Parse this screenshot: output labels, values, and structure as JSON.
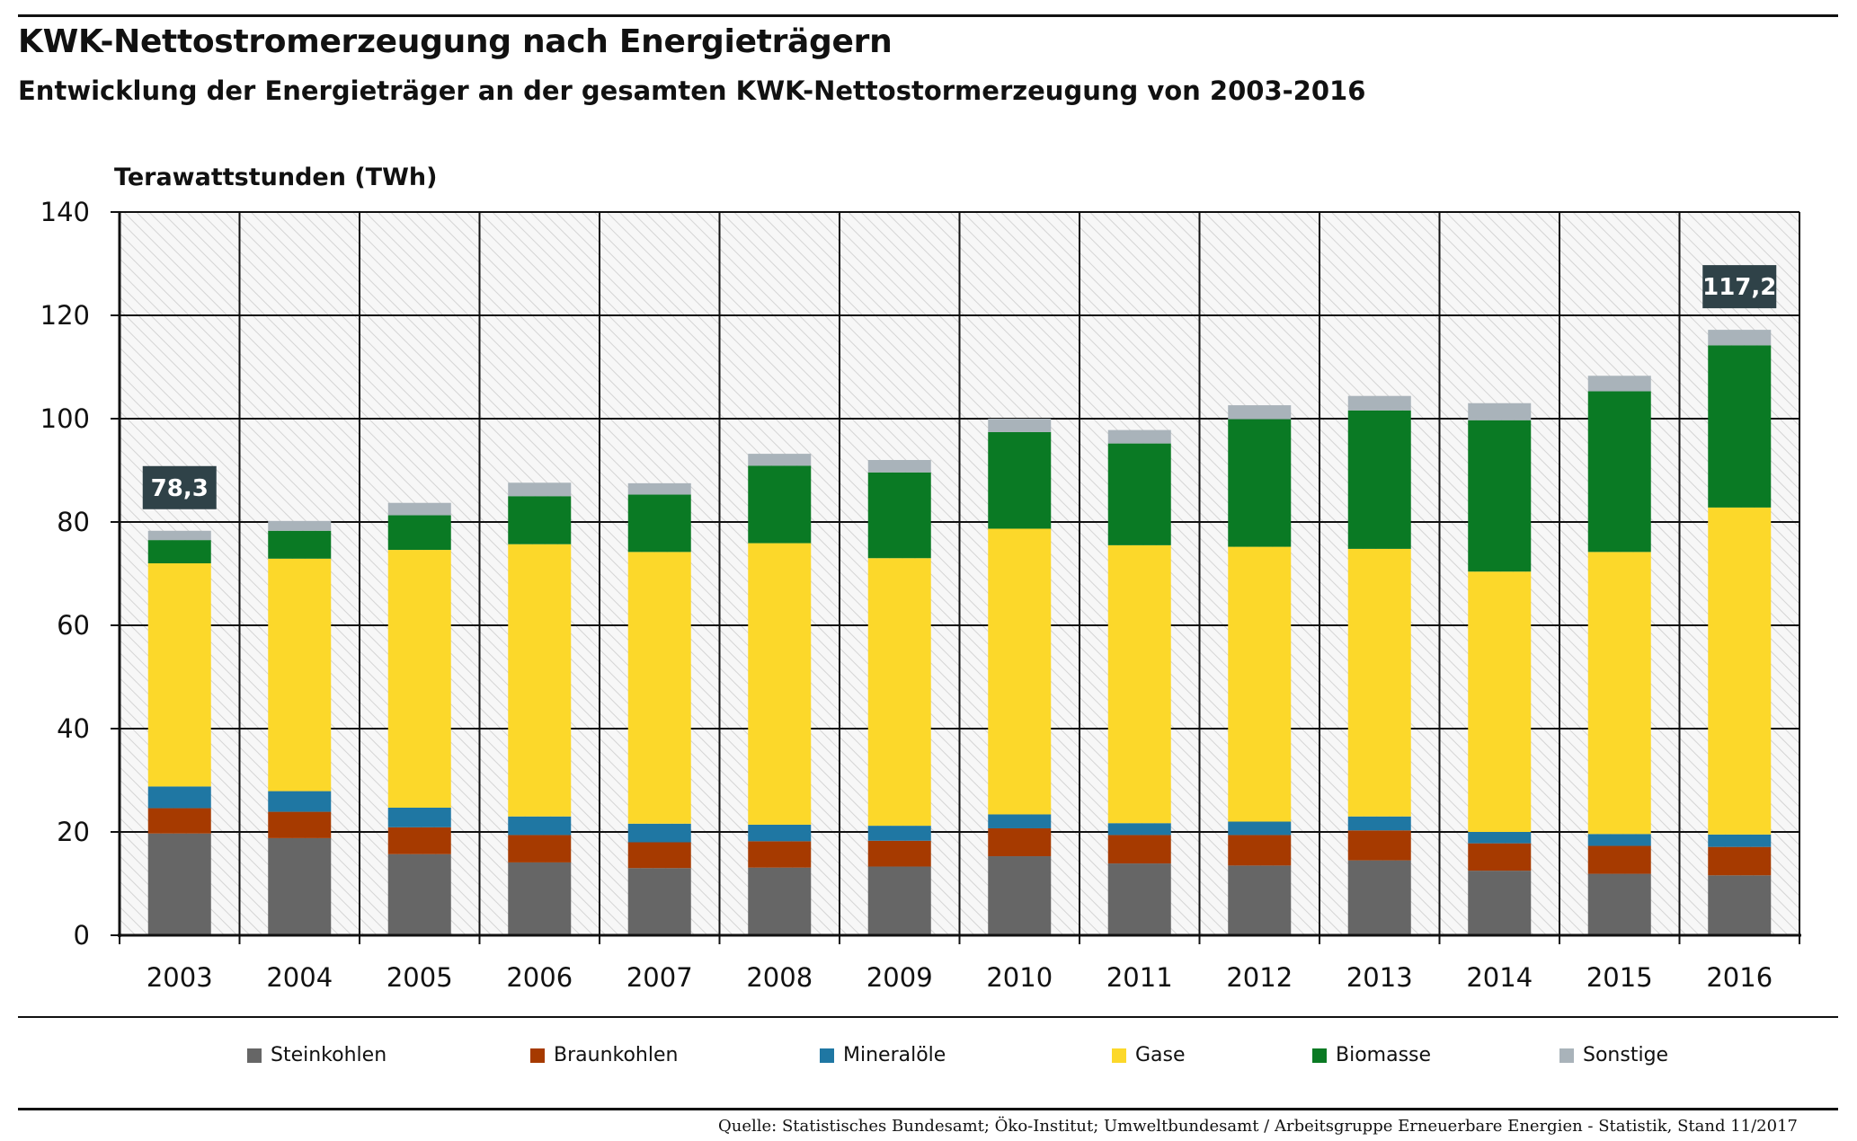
{
  "header": {
    "title": "KWK-Nettostromerzeugung nach Energieträgern",
    "subtitle": "Entwicklung der Energieträger an der gesamten KWK-Nettostormerzeugung von 2003-2016"
  },
  "footer": {
    "source": "Quelle: Statistisches Bundesamt; Öko-Institut; Umweltbundesamt / Arbeitsgruppe Erneuerbare Energien - Statistik, Stand 11/2017"
  },
  "chart_data": {
    "type": "bar",
    "stacked": true,
    "title": "KWK-Nettostromerzeugung nach Energieträgern",
    "subtitle": "Entwicklung der Energieträger an der gesamten KWK-Nettostormerzeugung von 2003-2016",
    "ylabel": "Terawattstunden (TWh)",
    "xlabel": "",
    "ylim": [
      0,
      140
    ],
    "yticks": [
      0,
      20,
      40,
      60,
      80,
      100,
      120,
      140
    ],
    "grid": true,
    "legend_position": "bottom",
    "categories": [
      "2003",
      "2004",
      "2005",
      "2006",
      "2007",
      "2008",
      "2009",
      "2010",
      "2011",
      "2012",
      "2013",
      "2014",
      "2015",
      "2016"
    ],
    "series": [
      {
        "name": "Steinkohlen",
        "color": "#666666",
        "values": [
          19.7,
          18.8,
          15.7,
          14.1,
          13.0,
          13.1,
          13.3,
          15.3,
          13.9,
          13.5,
          14.5,
          12.5,
          11.9,
          11.6
        ]
      },
      {
        "name": "Braunkohlen",
        "color": "#a63a00",
        "values": [
          4.9,
          5.1,
          5.2,
          5.3,
          5.0,
          5.1,
          5.0,
          5.4,
          5.5,
          5.9,
          5.8,
          5.3,
          5.4,
          5.5
        ]
      },
      {
        "name": "Mineralöle",
        "color": "#1f77a3",
        "values": [
          4.2,
          4.0,
          3.8,
          3.6,
          3.6,
          3.2,
          2.9,
          2.7,
          2.3,
          2.6,
          2.7,
          2.2,
          2.3,
          2.4
        ]
      },
      {
        "name": "Gase",
        "color": "#fcd82a",
        "values": [
          43.2,
          45.0,
          49.9,
          52.7,
          52.6,
          54.5,
          51.8,
          55.3,
          53.8,
          53.2,
          51.8,
          50.4,
          54.6,
          63.3
        ]
      },
      {
        "name": "Biomasse",
        "color": "#0a7a24",
        "values": [
          4.5,
          5.4,
          6.7,
          9.3,
          11.1,
          15.0,
          16.6,
          18.7,
          19.7,
          24.7,
          26.8,
          29.3,
          31.1,
          31.4
        ]
      },
      {
        "name": "Sonstige",
        "color": "#a9b3ba",
        "values": [
          1.8,
          1.9,
          2.4,
          2.6,
          2.2,
          2.3,
          2.4,
          2.6,
          2.6,
          2.7,
          2.8,
          3.3,
          3.0,
          3.0
        ]
      }
    ],
    "annotations": [
      {
        "category": "2003",
        "label": "78,3"
      },
      {
        "category": "2016",
        "label": "117,2"
      }
    ]
  }
}
